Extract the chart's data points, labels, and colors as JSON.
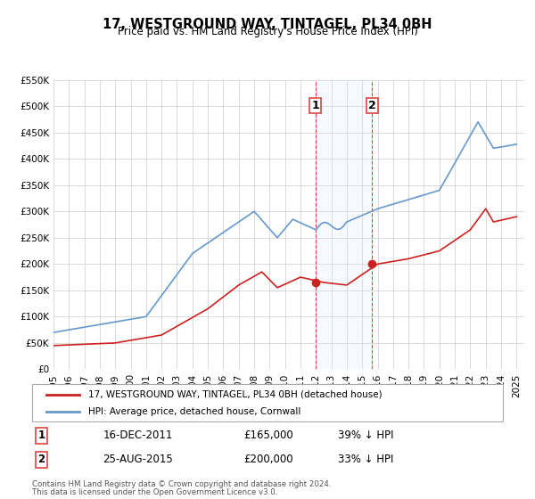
{
  "title": "17, WESTGROUND WAY, TINTAGEL, PL34 0BH",
  "subtitle": "Price paid vs. HM Land Registry's House Price Index (HPI)",
  "legend_line1": "17, WESTGROUND WAY, TINTAGEL, PL34 0BH (detached house)",
  "legend_line2": "HPI: Average price, detached house, Cornwall",
  "footnote1": "Contains HM Land Registry data © Crown copyright and database right 2024.",
  "footnote2": "This data is licensed under the Open Government Licence v3.0.",
  "transaction1_label": "1",
  "transaction1_date": "16-DEC-2011",
  "transaction1_price": "£165,000",
  "transaction1_hpi": "39% ↓ HPI",
  "transaction2_label": "2",
  "transaction2_date": "25-AUG-2015",
  "transaction2_price": "£200,000",
  "transaction2_hpi": "33% ↓ HPI",
  "hpi_color": "#6699cc",
  "price_color": "#cc2222",
  "point_color": "#cc2222",
  "shade_color": "#ddeeff",
  "vline_color": "#dd4444",
  "grid_color": "#cccccc",
  "ylim": [
    0,
    550000
  ],
  "yticks": [
    0,
    50000,
    100000,
    150000,
    200000,
    250000,
    300000,
    350000,
    400000,
    450000,
    500000,
    550000
  ],
  "xlim_start": 1995.0,
  "xlim_end": 2025.5,
  "transaction1_x": 2011.96,
  "transaction1_y": 165000,
  "transaction2_x": 2015.65,
  "transaction2_y": 200000,
  "background_color": "#f8f8f8"
}
